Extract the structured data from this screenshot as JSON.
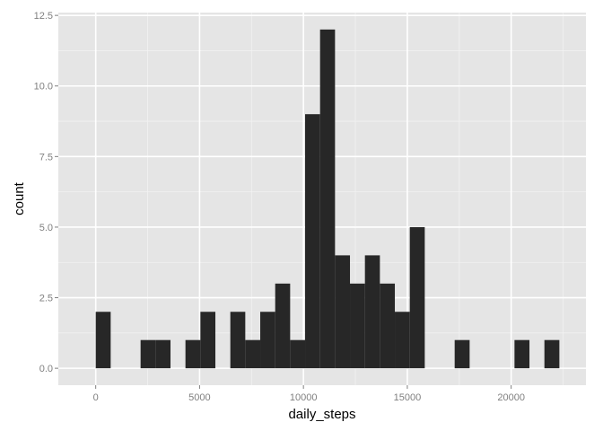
{
  "chart_data": {
    "type": "bar",
    "xlabel": "daily_steps",
    "ylabel": "count",
    "xlim": [
      -1800,
      23600
    ],
    "ylim": [
      -0.6,
      12.6
    ],
    "xticks": [
      0,
      5000,
      10000,
      15000,
      20000
    ],
    "xtick_labels": [
      "0",
      "5000",
      "10000",
      "15000",
      "20000"
    ],
    "yticks": [
      0.0,
      2.5,
      5.0,
      7.5,
      10.0,
      12.5
    ],
    "ytick_labels": [
      "0.0",
      "2.5",
      "5.0",
      "7.5",
      "10.0",
      "12.5"
    ],
    "grid": true,
    "legend": "none",
    "bin_width": 720,
    "bins": [
      {
        "x0": 0,
        "x1": 720,
        "count": 2
      },
      {
        "x0": 2160,
        "x1": 2880,
        "count": 1
      },
      {
        "x0": 2880,
        "x1": 3600,
        "count": 1
      },
      {
        "x0": 4320,
        "x1": 5040,
        "count": 1
      },
      {
        "x0": 5040,
        "x1": 5760,
        "count": 2
      },
      {
        "x0": 6480,
        "x1": 7200,
        "count": 2
      },
      {
        "x0": 7200,
        "x1": 7920,
        "count": 1
      },
      {
        "x0": 7920,
        "x1": 8640,
        "count": 2
      },
      {
        "x0": 8640,
        "x1": 9360,
        "count": 3
      },
      {
        "x0": 9360,
        "x1": 10080,
        "count": 1
      },
      {
        "x0": 10080,
        "x1": 10800,
        "count": 9
      },
      {
        "x0": 10800,
        "x1": 11520,
        "count": 12
      },
      {
        "x0": 11520,
        "x1": 12240,
        "count": 4
      },
      {
        "x0": 12240,
        "x1": 12960,
        "count": 3
      },
      {
        "x0": 12960,
        "x1": 13680,
        "count": 4
      },
      {
        "x0": 13680,
        "x1": 14400,
        "count": 3
      },
      {
        "x0": 14400,
        "x1": 15120,
        "count": 2
      },
      {
        "x0": 15120,
        "x1": 15840,
        "count": 5
      },
      {
        "x0": 17280,
        "x1": 18000,
        "count": 1
      },
      {
        "x0": 20160,
        "x1": 20880,
        "count": 1
      },
      {
        "x0": 21600,
        "x1": 22320,
        "count": 1
      }
    ],
    "colors": {
      "bar": "#272727",
      "panel": "#e5e5e5",
      "grid_major": "#ffffff",
      "grid_minor": "#f2f2f2"
    }
  }
}
